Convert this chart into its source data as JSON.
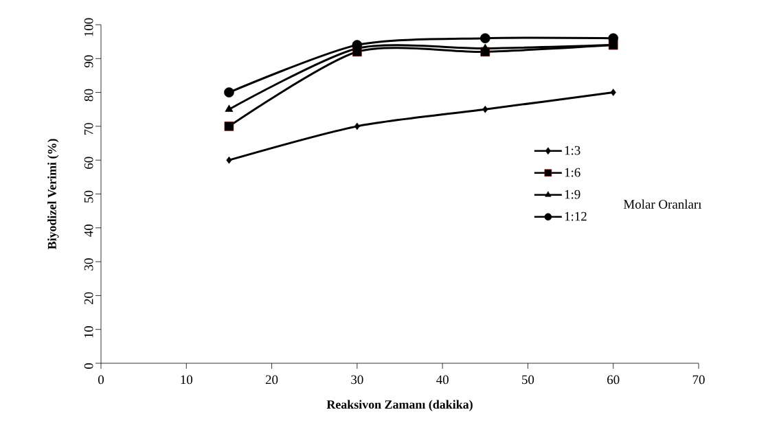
{
  "chart_data": {
    "type": "line",
    "xlabel": "Reaksivon Zamanı (dakika)",
    "ylabel": "Biyodizel Verimi (%)",
    "legend_title": "Molar Oranları",
    "x": [
      15,
      30,
      45,
      60
    ],
    "xlim": [
      0,
      70
    ],
    "xticks": [
      0,
      10,
      20,
      30,
      40,
      50,
      60,
      70
    ],
    "ylim": [
      0,
      100
    ],
    "yticks": [
      0,
      10,
      20,
      30,
      40,
      50,
      60,
      70,
      80,
      90,
      100
    ],
    "grid": false,
    "legend": "right",
    "series": [
      {
        "name": "1:3",
        "color": "#000000",
        "marker": "diamond",
        "values": [
          60,
          70,
          75,
          80
        ]
      },
      {
        "name": "1:6",
        "color": "#000000",
        "marker": "square",
        "values": [
          70,
          92,
          92,
          94
        ]
      },
      {
        "name": "1:9",
        "color": "#000000",
        "marker": "triangle",
        "values": [
          75,
          93,
          93,
          94
        ]
      },
      {
        "name": "1:12",
        "color": "#000000",
        "marker": "circle",
        "values": [
          80,
          94,
          96,
          96
        ]
      }
    ]
  }
}
